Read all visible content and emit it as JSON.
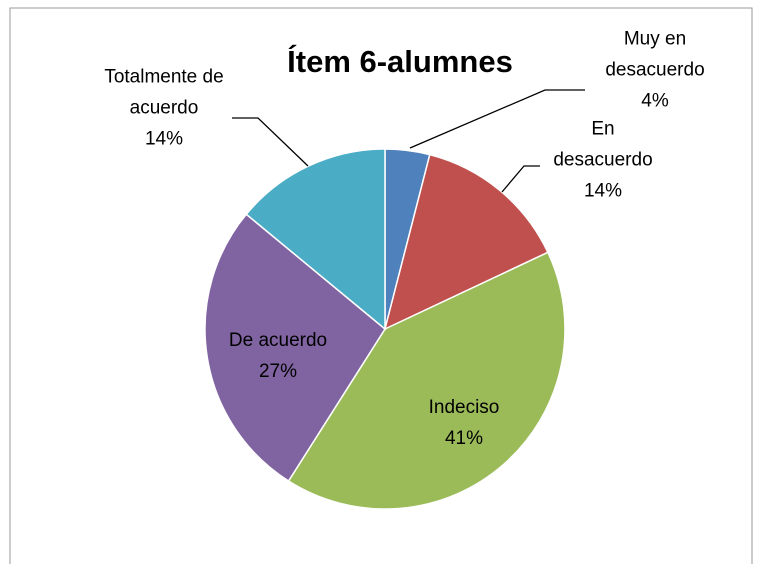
{
  "chart_data": {
    "type": "pie",
    "title": "Ítem 6-alumnes",
    "categories": [
      "Muy en desacuerdo",
      "En desacuerdo",
      "Indeciso",
      "De acuerdo",
      "Totalmente de acuerdo"
    ],
    "values": [
      4,
      14,
      41,
      27,
      14
    ],
    "value_labels": [
      "4%",
      "14%",
      "41%",
      "27%",
      "14%"
    ],
    "colors": [
      "#4f81bd",
      "#c0504d",
      "#9bbb59",
      "#8064a2",
      "#4bacc6"
    ]
  }
}
